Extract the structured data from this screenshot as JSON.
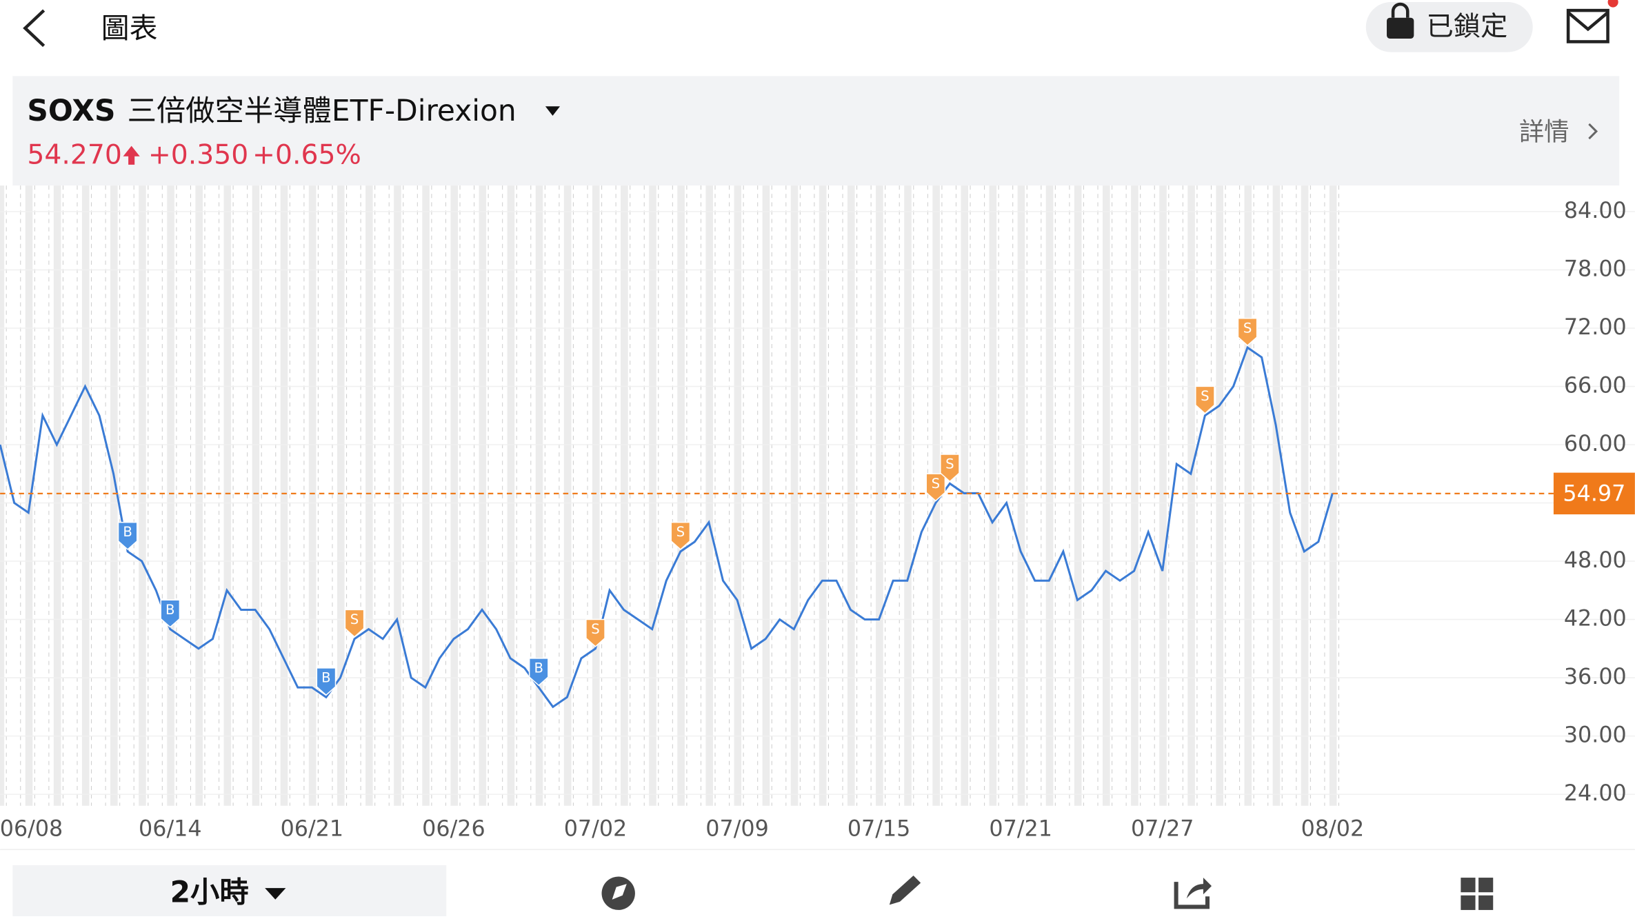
{
  "header": {
    "title": "圖表",
    "lock": "已鎖定"
  },
  "quote": {
    "symbol": "SOXS",
    "name": "三倍做空半導體ETF-Direxion",
    "price": "54.270",
    "change": "+0.350",
    "change_pct": "+0.65%",
    "details": "詳情"
  },
  "toolbar": {
    "interval": "2小時"
  },
  "chart_data": {
    "type": "line",
    "categories": [
      null,
      null,
      "06/08",
      null,
      null,
      null,
      null,
      null,
      null,
      null,
      null,
      null,
      "06/14",
      null,
      null,
      null,
      null,
      null,
      null,
      null,
      null,
      null,
      "06/21",
      null,
      null,
      null,
      null,
      null,
      null,
      null,
      null,
      null,
      "06/26",
      null,
      null,
      null,
      null,
      null,
      null,
      null,
      null,
      null,
      "07/02",
      null,
      null,
      null,
      null,
      null,
      null,
      null,
      null,
      null,
      "07/09",
      null,
      null,
      null,
      null,
      null,
      null,
      null,
      null,
      null,
      "07/15",
      null,
      null,
      null,
      null,
      null,
      null,
      null,
      null,
      null,
      "07/21",
      null,
      null,
      null,
      null,
      null,
      null,
      null,
      null,
      null,
      "07/27",
      null,
      null,
      null,
      null,
      null,
      null,
      null,
      null,
      null,
      null,
      null,
      "08/02"
    ],
    "series": [
      {
        "name": "SOXS",
        "color": "#3a7bd5",
        "values": [
          60,
          54,
          53,
          63,
          60,
          63,
          66,
          63,
          57,
          49,
          48,
          45,
          41,
          40,
          39,
          40,
          45,
          43,
          43,
          41,
          38,
          35,
          35,
          34,
          36,
          40,
          41,
          40,
          42,
          36,
          35,
          38,
          40,
          41,
          43,
          41,
          38,
          37,
          35,
          33,
          34,
          38,
          39,
          45,
          43,
          42,
          41,
          46,
          49,
          50,
          52,
          46,
          44,
          39,
          40,
          42,
          41,
          44,
          46,
          46,
          43,
          42,
          42,
          46,
          46,
          51,
          54,
          56,
          55,
          55,
          52,
          54,
          49,
          46,
          46,
          49,
          44,
          45,
          47,
          46,
          47,
          51,
          47,
          58,
          57,
          63,
          64,
          66,
          70,
          69,
          62,
          53,
          49,
          50,
          55
        ]
      }
    ],
    "ylim": [
      24,
      84
    ],
    "yticks": [
      {
        "value": 24,
        "label": "24.00"
      },
      {
        "value": 30,
        "label": "30.00"
      },
      {
        "value": 36,
        "label": "36.00"
      },
      {
        "value": 42,
        "label": "42.00"
      },
      {
        "value": 48,
        "label": "48.00"
      },
      {
        "value": 54,
        "label": "54.00"
      },
      {
        "value": 60,
        "label": "60.00"
      },
      {
        "value": 66,
        "label": "66.00"
      },
      {
        "value": 72,
        "label": "72.00"
      },
      {
        "value": 78,
        "label": "78.00"
      },
      {
        "value": 84,
        "label": "84.00"
      }
    ],
    "reference_line": {
      "value": 54.97,
      "label": "54.97",
      "color": "#f07a1a"
    },
    "markers": [
      {
        "label": "B",
        "at": 9
      },
      {
        "label": "B",
        "at": 12
      },
      {
        "label": "B",
        "at": 23
      },
      {
        "label": "S",
        "at": 25
      },
      {
        "label": "B",
        "at": 38
      },
      {
        "label": "S",
        "at": 42
      },
      {
        "label": "S",
        "at": 48
      },
      {
        "label": "S",
        "at": 66
      },
      {
        "label": "S",
        "at": 67
      },
      {
        "label": "S",
        "at": 85
      },
      {
        "label": "S",
        "at": 88
      }
    ]
  }
}
